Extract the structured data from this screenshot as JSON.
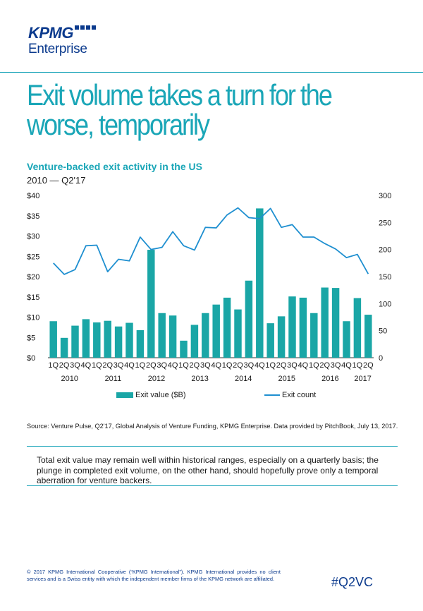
{
  "logo": {
    "brand": "KPMG",
    "sub": "Enterprise"
  },
  "headline": "Exit volume takes a turn for the worse, temporarily",
  "chart_data": {
    "type": "bar",
    "title": "Venture-backed exit activity in the US",
    "subtitle": "2010 — Q2'17",
    "quarters": [
      "1Q",
      "2Q",
      "3Q",
      "4Q",
      "1Q",
      "2Q",
      "3Q",
      "4Q",
      "1Q",
      "2Q",
      "3Q",
      "4Q",
      "1Q",
      "2Q",
      "3Q",
      "4Q",
      "1Q",
      "2Q",
      "3Q",
      "4Q",
      "1Q",
      "2Q",
      "3Q",
      "4Q",
      "1Q",
      "2Q",
      "3Q",
      "4Q",
      "1Q",
      "2Q"
    ],
    "years": [
      {
        "label": "2010",
        "start": 0,
        "end": 3
      },
      {
        "label": "2011",
        "start": 4,
        "end": 7
      },
      {
        "label": "2012",
        "start": 8,
        "end": 11
      },
      {
        "label": "2013",
        "start": 12,
        "end": 15
      },
      {
        "label": "2014",
        "start": 16,
        "end": 19
      },
      {
        "label": "2015",
        "start": 20,
        "end": 23
      },
      {
        "label": "2016",
        "start": 24,
        "end": 27
      },
      {
        "label": "2017",
        "start": 28,
        "end": 29
      }
    ],
    "series": [
      {
        "name": "Exit value ($B)",
        "type": "bar",
        "axis": "left",
        "color": "#1aa6a6",
        "values": [
          9.0,
          4.9,
          7.9,
          9.5,
          8.7,
          9.1,
          7.7,
          8.6,
          6.8,
          26.6,
          11.0,
          10.4,
          4.2,
          8.1,
          11.0,
          13.1,
          14.8,
          11.9,
          19.0,
          36.8,
          8.5,
          10.2,
          15.1,
          14.8,
          11.0,
          17.3,
          17.2,
          9.0,
          14.7,
          10.6
        ]
      },
      {
        "name": "Exit count",
        "type": "line",
        "axis": "right",
        "color": "#1e8fd0",
        "values": [
          175,
          154,
          163,
          207,
          208,
          159,
          182,
          179,
          223,
          200,
          204,
          233,
          207,
          199,
          241,
          240,
          264,
          277,
          259,
          257,
          276,
          241,
          246,
          223,
          223,
          211,
          201,
          185,
          191,
          155
        ]
      }
    ],
    "ylim_left": [
      0,
      40
    ],
    "ylim_right": [
      0,
      300
    ],
    "yticks_left": [
      "$0",
      "$5",
      "$10",
      "$15",
      "$20",
      "$25",
      "$30",
      "$35",
      "$40"
    ],
    "yticks_right": [
      "0",
      "50",
      "100",
      "150",
      "200",
      "250",
      "300"
    ],
    "grid": false,
    "legend": "bottom"
  },
  "source": "Source: Venture Pulse, Q2'17, Global Analysis of Venture Funding, KPMG Enterprise. Data provided by PitchBook, July 13, 2017.",
  "note": "Total exit value may remain well within historical ranges, especially on a quarterly basis; the plunge in completed exit volume, on the other hand, should hopefully prove only a temporal aberration for venture backers.",
  "footer": {
    "copyright": "© 2017 KPMG International Cooperative (“KPMG International”). KPMG International provides no client services and is a Swiss entity with which the independent member firms of the KPMG network are affiliated.",
    "hashtag": "#Q2VC"
  }
}
